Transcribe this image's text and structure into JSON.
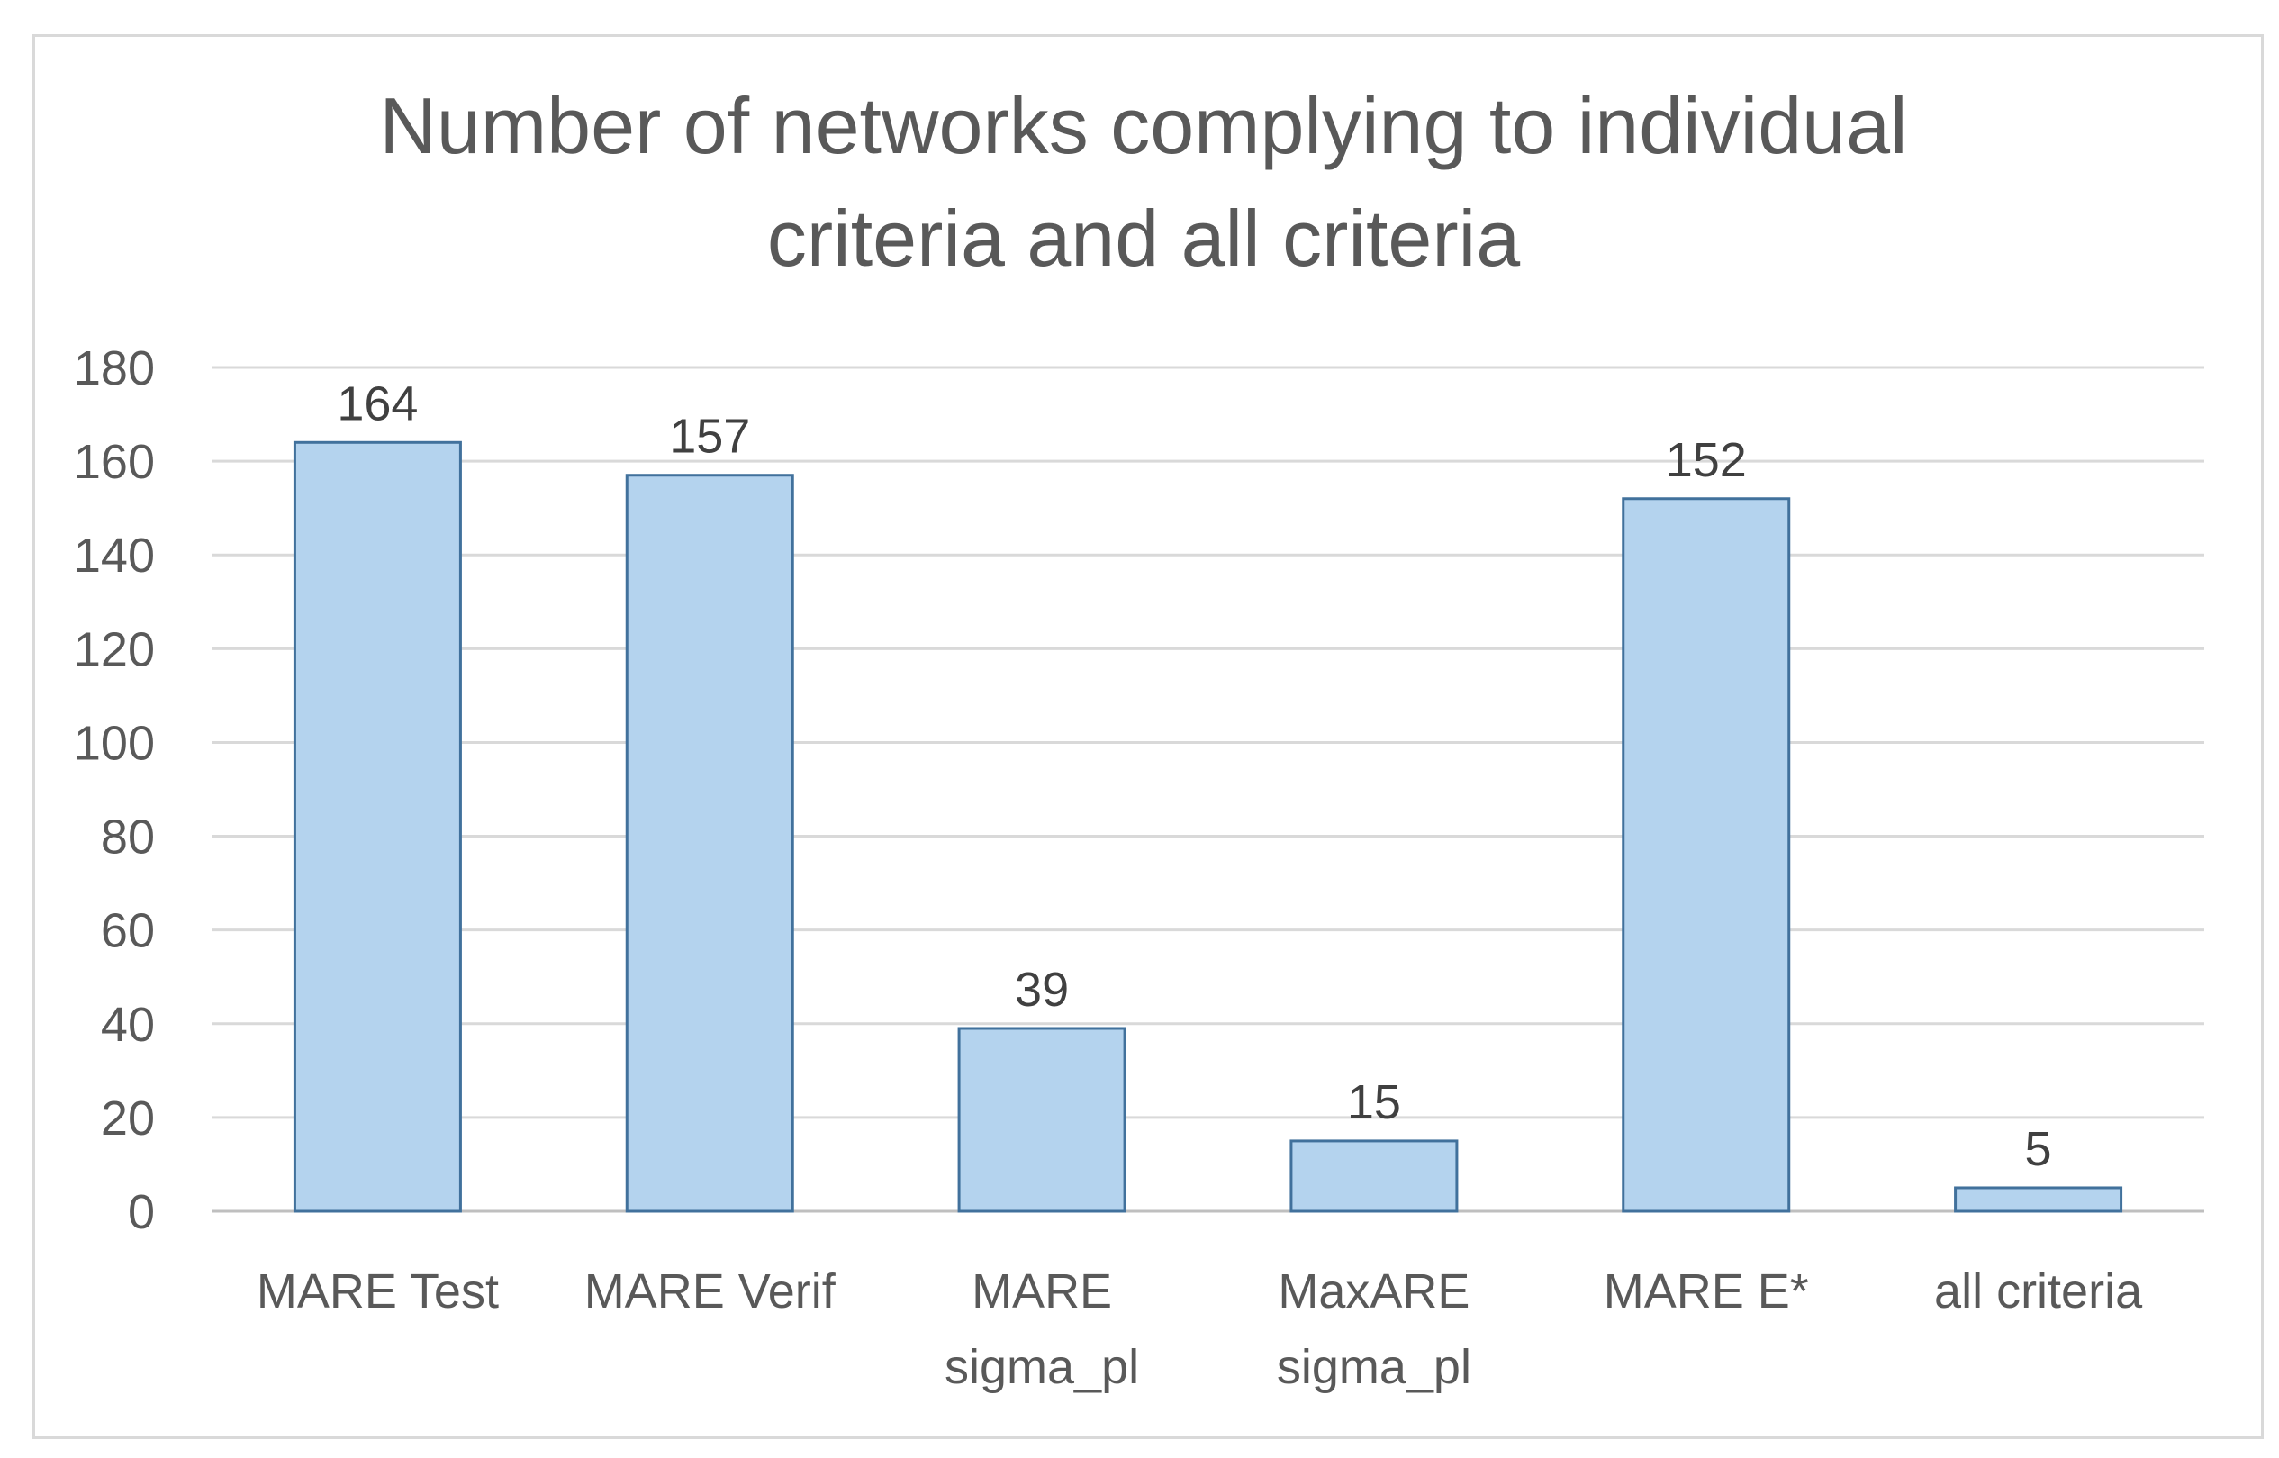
{
  "chart_data": {
    "type": "bar",
    "title_lines": [
      "Number of networks complying to individual",
      "criteria and all criteria"
    ],
    "categories": [
      [
        "MARE Test"
      ],
      [
        "MARE Verif"
      ],
      [
        "MARE",
        "sigma_pl"
      ],
      [
        "MaxARE",
        "sigma_pl"
      ],
      [
        "MARE E*"
      ],
      [
        "all criteria"
      ]
    ],
    "values": [
      164,
      157,
      39,
      15,
      152,
      5
    ],
    "data_labels": [
      "164",
      "157",
      "39",
      "15",
      "152",
      "5"
    ],
    "ylim": [
      0,
      180
    ],
    "yticks": [
      "0",
      "20",
      "40",
      "60",
      "80",
      "100",
      "120",
      "140",
      "160",
      "180"
    ],
    "grid": true,
    "legend": "none",
    "colors": {
      "bar_fill": "#b4d3ee",
      "bar_stroke": "#41719c"
    }
  }
}
